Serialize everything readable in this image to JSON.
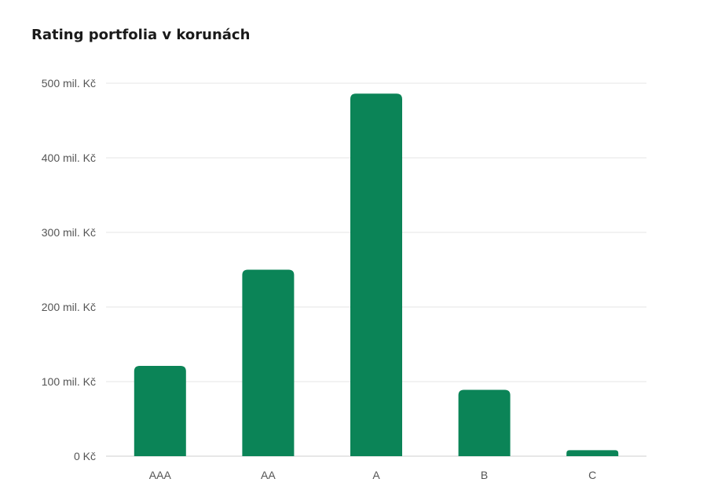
{
  "chart_data": {
    "type": "bar",
    "title": "Rating portfolia v korunách",
    "xlabel": "",
    "ylabel": "",
    "categories": [
      "AAA",
      "AA",
      "A",
      "B",
      "C"
    ],
    "values": [
      121,
      250,
      486,
      89,
      8
    ],
    "units": "mil. Kč",
    "ylim": [
      0,
      500
    ],
    "yticks": [
      0,
      100,
      200,
      300,
      400,
      500
    ],
    "ytick_labels": [
      "0 Kč",
      "100 mil. Kč",
      "200 mil. Kč",
      "300 mil. Kč",
      "400 mil. Kč",
      "500 mil. Kč"
    ],
    "grid": true,
    "legend": "none",
    "bar_color": "#0b8457"
  }
}
